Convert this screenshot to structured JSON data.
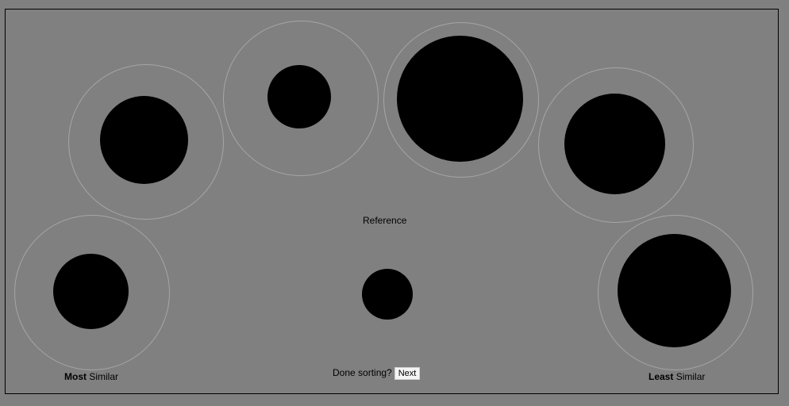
{
  "labels": {
    "reference": "Reference",
    "most_bold": "Most",
    "most_rest": " Similar",
    "least_bold": "Least",
    "least_rest": " Similar",
    "done_prompt": "Done sorting?"
  },
  "next_button": {
    "label": "Next"
  },
  "colors": {
    "background": "#808080",
    "disc": "#000000",
    "ring": "#a6a6a6",
    "button_background": "#f4f4f4"
  }
}
